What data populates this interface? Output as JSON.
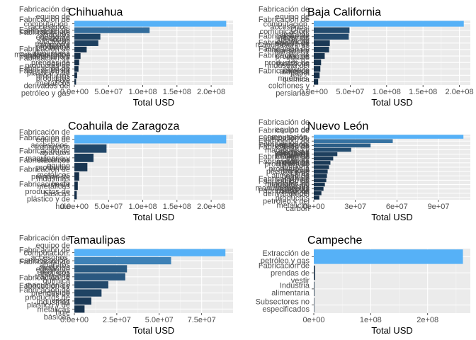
{
  "chart_data": [
    {
      "type": "bar",
      "title": "Chihuahua",
      "xlabel": "Total USD",
      "ylabel": "",
      "xlim": [
        0,
        232000000
      ],
      "x_ticks": [
        0,
        50000000,
        100000000,
        150000000,
        200000000
      ],
      "x_tick_labels": [
        "0.0e+00",
        "5.0e+07",
        "1.0e+08",
        "1.5e+08",
        "2.0e+08"
      ],
      "categories": [
        "Fabricación de equipo de computación, comunicación, medición",
        "Fabricación de accesorios, aparatos eléctricos",
        "Fabricación de equipo de transporte",
        "Fabricación de otros productos manufacturados",
        "Industria alimentaria",
        "Fabricación de maquinaria y equipo",
        "Fabricación de prendas de vestir",
        "Fabricación de productos de plástico y de hule",
        "Fabricación de productos metálicos",
        "Fabricación de productos derivados del petróleo y gas"
      ],
      "values": [
        222000000,
        110000000,
        38000000,
        35000000,
        18000000,
        9000000,
        7000000,
        6000000,
        4000000,
        2500000
      ],
      "highlight_index": 0
    },
    {
      "type": "bar",
      "title": "Baja California",
      "xlabel": "Total USD",
      "ylabel": "",
      "xlim": [
        0,
        215000000
      ],
      "x_ticks": [
        0,
        50000000,
        100000000,
        150000000,
        200000000
      ],
      "x_tick_labels": [
        "0.0e+00",
        "5.0e+07",
        "1.0e+08",
        "1.5e+08",
        "2.0e+08"
      ],
      "categories": [
        "Fabricación de equipo de computación, comunicación, medición",
        "Fabricación de accesorios, aparatos eléctricos",
        "Otras industrias manufactureras",
        "Fabricación de equipo de transporte",
        "Fabricación de maquinaria y equipo",
        "Fabricación de productos metálicos",
        "Fabricación de productos de plástico",
        "Industria del papel",
        "Industria química",
        "Fabricación de muebles, colchones y persianas"
      ],
      "values": [
        206000000,
        49000000,
        48000000,
        22000000,
        21000000,
        15000000,
        10000000,
        9000000,
        8000000,
        6000000
      ],
      "highlight_index": 0
    },
    {
      "type": "bar",
      "title": "Coahuila de Zaragoza",
      "xlabel": "Total USD",
      "ylabel": "",
      "xlim": [
        0,
        232000000
      ],
      "x_ticks": [
        0,
        50000000,
        100000000,
        150000000,
        200000000
      ],
      "x_tick_labels": [
        "0.0e+00",
        "5.0e+07",
        "1.0e+08",
        "1.5e+08",
        "2.0e+08"
      ],
      "categories": [
        "Fabricación de equipo de transporte",
        "Fabricación de accesorios, aparatos eléctricos",
        "Fabricación de maquinaria y equipo",
        "Fabricación de productos metálicos",
        "Fabricación de prendas de vestir",
        "Industrias metálicas básicas",
        "Fabricación de productos de plástico y de hule"
      ],
      "values": [
        222000000,
        47000000,
        28000000,
        19000000,
        7000000,
        5000000,
        3500000
      ],
      "highlight_index": 0
    },
    {
      "type": "bar",
      "title": "Nuevo León",
      "xlabel": "Total USD",
      "ylabel": "",
      "xlim": [
        0,
        113000000
      ],
      "x_ticks": [
        0,
        30000000,
        60000000,
        90000000
      ],
      "x_tick_labels": [
        "0e+00",
        "3e+07",
        "6e+07",
        "9e+07"
      ],
      "categories": [
        "Fabricación de equipo de computación, comunicación, medición",
        "Fabricación de accesorios, aparatos eléctricos",
        "Fabricación de equipo de transporte",
        "Fabricación de maquinaria y equipo",
        "Fabricación de productos metálicos",
        "Industria química",
        "Industrias metálicas básicas",
        "Fabricación de productos de plástico y de hule",
        "Industria alimentaria",
        "Fabricación de productos a base de minerales no metálicos",
        "Otras industrias manufactureras",
        "Fabricación de muebles",
        "Industria del papel",
        "Fabricación de productos derivados del petróleo y del carbón",
        "Fabricación de productos metálicos"
      ],
      "values": [
        108000000,
        57000000,
        41000000,
        27000000,
        17000000,
        14000000,
        12000000,
        11000000,
        10000000,
        9500000,
        9000000,
        8000000,
        7000000,
        5500000,
        4000000
      ],
      "highlight_index": 0
    },
    {
      "type": "bar",
      "title": "Tamaulipas",
      "xlabel": "Total USD",
      "ylabel": "",
      "xlim": [
        0,
        93500000
      ],
      "x_ticks": [
        0,
        25000000,
        50000000,
        75000000
      ],
      "x_tick_labels": [
        "0.0e+00",
        "2.5e+07",
        "5.0e+07",
        "7.5e+07"
      ],
      "categories": [
        "Fabricación de equipo de computación, comunicación, medición",
        "Fabricación de accesorios, aparatos eléctricos",
        "Fabricación de equipo de transporte",
        "Industria química",
        "Fabricación de maquinaria y equipo",
        "Fabricación de prendas de vestir",
        "Fabricación de productos de plástico y de hule",
        "Industrias metálicas básicas"
      ],
      "values": [
        89000000,
        57000000,
        31000000,
        30000000,
        20000000,
        16000000,
        10000000,
        6000000
      ],
      "highlight_index": 0
    },
    {
      "type": "bar",
      "title": "Campeche",
      "xlabel": "Total USD",
      "ylabel": "",
      "xlim": [
        0,
        275000000
      ],
      "x_ticks": [
        0,
        100000000,
        200000000
      ],
      "x_tick_labels": [
        "0e+00",
        "1e+08",
        "2e+08"
      ],
      "categories": [
        "Extracción de petróleo y gas",
        "Fabricación de prendas de vestir",
        "Industria alimentaria",
        "Subsectores no especificados"
      ],
      "values": [
        262000000,
        2000000,
        1000000,
        400000
      ],
      "highlight_index": 0
    }
  ]
}
